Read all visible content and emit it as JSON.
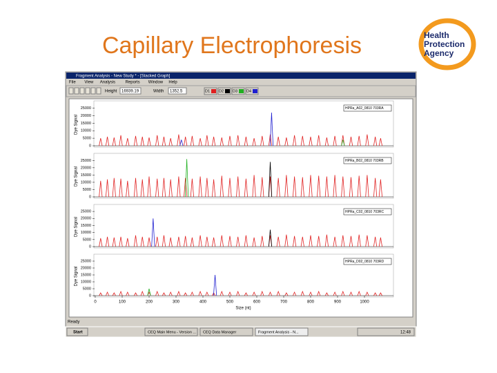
{
  "slide": {
    "title": "Capillary Electrophoresis",
    "logo": [
      "Health",
      "Protection",
      "Agency"
    ]
  },
  "window": {
    "title": "Fragment Analysis - New Study * - [Stacked Graph]",
    "menu": [
      "File",
      "View",
      "Analysis",
      "Reports",
      "Window",
      "Help"
    ],
    "toolbar": {
      "height_label": "Height",
      "height_value": "16939.19",
      "width_label": "Width",
      "width_value": "1352.5",
      "dyes": [
        "D1",
        "D2",
        "D3",
        "D4"
      ],
      "dye_colors": [
        "#e02020",
        "#000000",
        "#20b020",
        "#2020d0"
      ]
    },
    "status": "Ready"
  },
  "chart_data": {
    "type": "electropherogram",
    "y_label": "Dye Signal",
    "x_label": "Size (nt)",
    "xlim": [
      0,
      1100
    ],
    "xticks": [
      0,
      100,
      200,
      300,
      400,
      500,
      600,
      700,
      800,
      900,
      1000
    ],
    "ylim": [
      0,
      28000
    ],
    "yticks": [
      0,
      5000,
      10000,
      15000,
      20000,
      25000
    ],
    "panels": [
      {
        "label": "HPRa_A02_0810 703RA",
        "series": [
          {
            "color": "#e02020",
            "x": [
              20,
              45,
              70,
              95,
              120,
              150,
              175,
              200,
              230,
              255,
              280,
              310,
              335,
              360,
              390,
              415,
              440,
              470,
              500,
              530,
              560,
              590,
              620,
              650,
              680,
              710,
              740,
              770,
              800,
              830,
              860,
              890,
              920,
              950,
              980,
              1010,
              1040,
              1060
            ],
            "values": [
              5000,
              6000,
              5500,
              7000,
              5000,
              6500,
              6000,
              5500,
              7000,
              6000,
              5000,
              7500,
              6000,
              6500,
              5000,
              7000,
              6000,
              5500,
              6500,
              7000,
              6000,
              5000,
              6500,
              7500,
              6000,
              5500,
              7000,
              6500,
              6000,
              7000,
              5500,
              6500,
              7000,
              6000,
              6500,
              7500,
              6000,
              5000
            ]
          },
          {
            "color": "#2020d0",
            "x": [
              320,
              655
            ],
            "values": [
              4000,
              22000
            ]
          },
          {
            "color": "#20b020",
            "x": [
              920
            ],
            "values": [
              4000
            ]
          }
        ]
      },
      {
        "label": "HPRa_B02_0810 703RB",
        "series": [
          {
            "color": "#e02020",
            "x": [
              20,
              45,
              70,
              95,
              120,
              150,
              175,
              200,
              230,
              255,
              280,
              310,
              335,
              360,
              390,
              415,
              440,
              470,
              500,
              530,
              560,
              590,
              620,
              650,
              680,
              710,
              740,
              770,
              800,
              830,
              860,
              890,
              920,
              950,
              980,
              1010,
              1040,
              1060
            ],
            "values": [
              11000,
              12000,
              13000,
              12500,
              11000,
              13000,
              12000,
              14000,
              12500,
              13000,
              12000,
              14000,
              13000,
              12500,
              14000,
              13000,
              12000,
              14500,
              13000,
              14000,
              12500,
              15000,
              13500,
              14000,
              13000,
              15000,
              14000,
              13500,
              15000,
              14500,
              14000,
              15000,
              14000,
              13500,
              14500,
              15000,
              13000,
              12000
            ]
          },
          {
            "color": "#20b020",
            "x": [
              340
            ],
            "values": [
              26000
            ]
          },
          {
            "color": "#000000",
            "x": [
              650
            ],
            "values": [
              24000
            ]
          }
        ]
      },
      {
        "label": "HPRa_C02_0810 703RC",
        "series": [
          {
            "color": "#e02020",
            "x": [
              20,
              45,
              70,
              95,
              120,
              150,
              175,
              200,
              230,
              255,
              280,
              310,
              335,
              360,
              390,
              415,
              440,
              470,
              500,
              530,
              560,
              590,
              620,
              650,
              680,
              710,
              740,
              770,
              800,
              830,
              860,
              890,
              920,
              950,
              980,
              1010,
              1040,
              1060
            ],
            "values": [
              6000,
              7000,
              6500,
              7000,
              6000,
              8000,
              7000,
              6500,
              7000,
              8000,
              6500,
              7000,
              7500,
              6500,
              8000,
              7000,
              6500,
              8000,
              7500,
              7000,
              8000,
              6500,
              7500,
              8000,
              7000,
              8500,
              7500,
              7000,
              8000,
              7500,
              8500,
              7000,
              8000,
              7500,
              8500,
              8000,
              7000,
              6500
            ]
          },
          {
            "color": "#2020d0",
            "x": [
              215
            ],
            "values": [
              20000
            ]
          },
          {
            "color": "#000000",
            "x": [
              650
            ],
            "values": [
              12000
            ]
          }
        ]
      },
      {
        "label": "HPRa_D02_0810 703RD",
        "series": [
          {
            "color": "#e02020",
            "x": [
              20,
              45,
              70,
              95,
              120,
              150,
              175,
              200,
              230,
              255,
              280,
              310,
              335,
              360,
              390,
              415,
              440,
              470,
              500,
              530,
              560,
              590,
              620,
              650,
              680,
              710,
              740,
              770,
              800,
              830,
              860,
              890,
              920,
              950,
              980,
              1010,
              1040,
              1060
            ],
            "values": [
              2000,
              2500,
              2000,
              3000,
              2500,
              2000,
              3000,
              2500,
              3000,
              2000,
              2500,
              3000,
              2000,
              2500,
              3000,
              2500,
              2000,
              3000,
              2500,
              3000,
              2000,
              2500,
              3000,
              2500,
              3000,
              2000,
              2500,
              3000,
              2500,
              3000,
              2000,
              2500,
              3000,
              2500,
              3000,
              2500,
              2000,
              2000
            ]
          },
          {
            "color": "#2020d0",
            "x": [
              445
            ],
            "values": [
              15000
            ]
          },
          {
            "color": "#20b020",
            "x": [
              200
            ],
            "values": [
              5000
            ]
          }
        ]
      }
    ]
  },
  "taskbar": {
    "start": "Start",
    "items": [
      "CEQ Main Menu - Version ...",
      "CEQ Data Manager",
      "Fragment Analysis - N..."
    ],
    "clock": "12:48"
  }
}
